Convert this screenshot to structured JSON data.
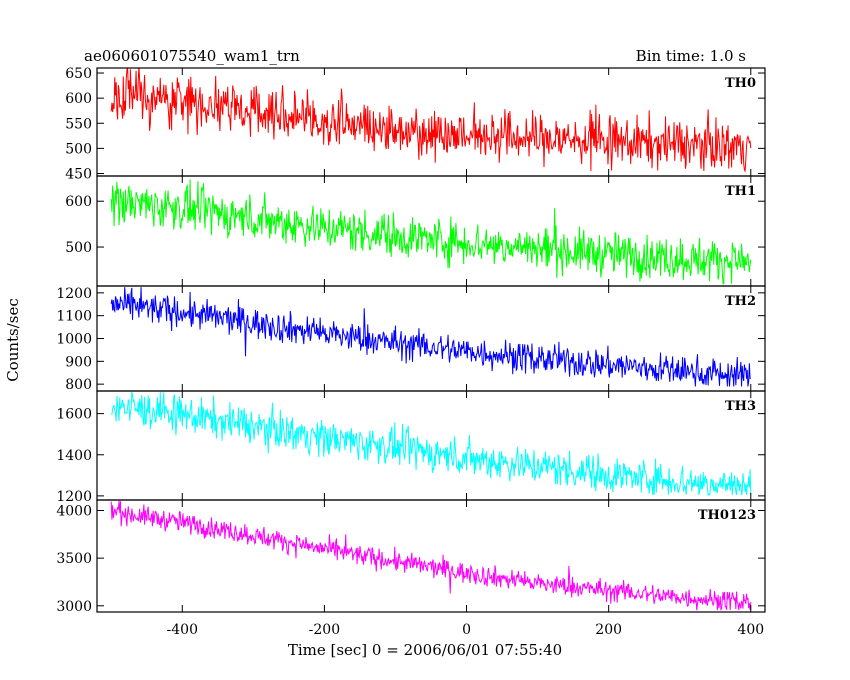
{
  "chart_data": {
    "type": "line",
    "title": "ae060601075540_wam1_trn",
    "subtitle": "Bin time: 1.0 s",
    "xlabel": "Time [sec] 0 = 2006/06/01 07:55:40",
    "ylabel": "Counts/sec",
    "xlim": [
      -520,
      420
    ],
    "x_ticks": [
      -400,
      -200,
      0,
      200,
      400
    ],
    "x": {
      "start": -500,
      "end": 400,
      "step": 1
    },
    "grid": false,
    "legend": "none",
    "panels": [
      {
        "name": "TH0",
        "color": "#ff0000",
        "ylim": [
          445,
          660
        ],
        "y_ticks": [
          450,
          500,
          550,
          600,
          650
        ],
        "trend": [
          [
            -500,
            605
          ],
          [
            -400,
            595
          ],
          [
            -300,
            575
          ],
          [
            -200,
            555
          ],
          [
            -100,
            537
          ],
          [
            0,
            527
          ],
          [
            100,
            520
          ],
          [
            200,
            514
          ],
          [
            300,
            508
          ],
          [
            400,
            505
          ]
        ],
        "noise": 25,
        "min": 455,
        "max": 665
      },
      {
        "name": "TH1",
        "color": "#00ff00",
        "ylim": [
          415,
          655
        ],
        "y_ticks": [
          500,
          600
        ],
        "trend": [
          [
            -500,
            600
          ],
          [
            -400,
            585
          ],
          [
            -300,
            563
          ],
          [
            -200,
            543
          ],
          [
            -100,
            525
          ],
          [
            0,
            510
          ],
          [
            100,
            497
          ],
          [
            200,
            485
          ],
          [
            300,
            475
          ],
          [
            400,
            468
          ]
        ],
        "noise": 24,
        "min": 420,
        "max": 648
      },
      {
        "name": "TH2",
        "color": "#0000ff",
        "ylim": [
          770,
          1230
        ],
        "y_ticks": [
          800,
          900,
          1000,
          1100,
          1200
        ],
        "trend": [
          [
            -500,
            1150
          ],
          [
            -400,
            1115
          ],
          [
            -300,
            1068
          ],
          [
            -200,
            1022
          ],
          [
            -100,
            980
          ],
          [
            0,
            945
          ],
          [
            100,
            912
          ],
          [
            200,
            885
          ],
          [
            300,
            858
          ],
          [
            400,
            835
          ]
        ],
        "noise": 34,
        "min": 790,
        "max": 1225
      },
      {
        "name": "TH3",
        "color": "#00ffff",
        "ylim": [
          1180,
          1710
        ],
        "y_ticks": [
          1200,
          1400,
          1600
        ],
        "trend": [
          [
            -500,
            1640
          ],
          [
            -400,
            1595
          ],
          [
            -300,
            1540
          ],
          [
            -200,
            1485
          ],
          [
            -100,
            1435
          ],
          [
            0,
            1385
          ],
          [
            100,
            1345
          ],
          [
            200,
            1305
          ],
          [
            300,
            1270
          ],
          [
            400,
            1245
          ]
        ],
        "noise": 45,
        "min": 1205,
        "max": 1705
      },
      {
        "name": "TH0123",
        "color": "#ff00ff",
        "ylim": [
          2935,
          4110
        ],
        "y_ticks": [
          3000,
          3500,
          4000
        ],
        "trend": [
          [
            -500,
            3990
          ],
          [
            -400,
            3875
          ],
          [
            -300,
            3740
          ],
          [
            -200,
            3595
          ],
          [
            -100,
            3465
          ],
          [
            0,
            3345
          ],
          [
            100,
            3235
          ],
          [
            200,
            3160
          ],
          [
            300,
            3090
          ],
          [
            400,
            3035
          ]
        ],
        "noise": 55,
        "min": 2955,
        "max": 4100
      }
    ]
  }
}
